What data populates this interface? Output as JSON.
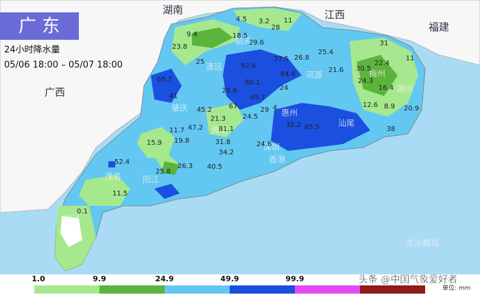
{
  "header": {
    "title": "广 东",
    "subtitle": "24小时降水量",
    "period": "05/06 18:00 – 05/07 18:00"
  },
  "provinces": [
    "湖南",
    "江西",
    "福建",
    "广西"
  ],
  "cities": [
    "清远",
    "韶关",
    "河源",
    "梅州",
    "潮州",
    "肇庆",
    "佛山",
    "惠州",
    "汕尾",
    "深圳",
    "香港",
    "茂名",
    "阳江",
    "湛江",
    "东沙群岛"
  ],
  "rainfall": {
    "values": [
      4.5,
      3.2,
      28,
      11,
      9.4,
      18.5,
      29.6,
      23.8,
      25,
      37.5,
      26.8,
      25.4,
      31,
      22.4,
      11,
      30.5,
      21.6,
      92.4,
      84.6,
      80.1,
      65.7,
      41,
      26.6,
      45.7,
      24,
      24.3,
      16.4,
      12.6,
      8.9,
      45.2,
      67,
      21.3,
      29,
      4,
      20.9,
      38,
      11.7,
      47.2,
      24.5,
      81.1,
      35.2,
      65.5,
      15.9,
      19.8,
      31.8,
      24.6,
      34.2,
      52.4,
      26.3,
      40.5,
      25.8,
      11.5,
      0.1
    ]
  },
  "legend": {
    "thresholds": [
      {
        "value": 1,
        "label": "1.0"
      },
      9.9,
      24.9,
      49.9,
      99.9
    ],
    "colors": [
      "#a6e88e",
      "#5cb43c",
      "#62c8f2",
      "#1a4fe0",
      "#e24bf0",
      "#8e1a1a"
    ],
    "unit": "单位: mm"
  },
  "watermark": "头条 @中国气象爱好者"
}
